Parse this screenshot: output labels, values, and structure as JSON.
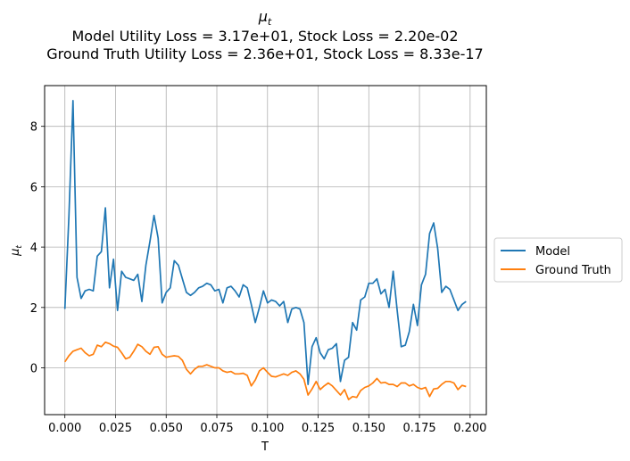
{
  "chart_data": {
    "type": "line",
    "title": "μt",
    "subtitle_lines": [
      "Model Utility Loss = 3.17e+01, Stock Loss = 2.20e-02",
      "Ground Truth Utility Loss = 2.36e+01, Stock Loss = 8.33e-17"
    ],
    "xlabel": "T",
    "ylabel": "μt",
    "xlim": [
      -0.01,
      0.208
    ],
    "ylim": [
      -1.55,
      9.35
    ],
    "xticks": [
      "0.000",
      "0.025",
      "0.050",
      "0.075",
      "0.100",
      "0.125",
      "0.150",
      "0.175",
      "0.200"
    ],
    "yticks": [
      "0",
      "2",
      "4",
      "6",
      "8"
    ],
    "grid": true,
    "legend_position": "outside-right",
    "x": [
      0.0,
      0.002,
      0.004,
      0.006,
      0.008,
      0.01,
      0.012,
      0.014,
      0.016,
      0.018,
      0.02,
      0.022,
      0.024,
      0.026,
      0.028,
      0.03,
      0.032,
      0.034,
      0.036,
      0.038,
      0.04,
      0.042,
      0.044,
      0.046,
      0.048,
      0.05,
      0.052,
      0.054,
      0.056,
      0.058,
      0.06,
      0.062,
      0.064,
      0.066,
      0.068,
      0.07,
      0.072,
      0.074,
      0.076,
      0.078,
      0.08,
      0.082,
      0.084,
      0.086,
      0.088,
      0.09,
      0.092,
      0.094,
      0.096,
      0.098,
      0.1,
      0.102,
      0.104,
      0.106,
      0.108,
      0.11,
      0.112,
      0.114,
      0.116,
      0.118,
      0.12,
      0.122,
      0.124,
      0.126,
      0.128,
      0.13,
      0.132,
      0.134,
      0.136,
      0.138,
      0.14,
      0.142,
      0.144,
      0.146,
      0.148,
      0.15,
      0.152,
      0.154,
      0.156,
      0.158,
      0.16,
      0.162,
      0.164,
      0.166,
      0.168,
      0.17,
      0.172,
      0.174,
      0.176,
      0.178,
      0.18,
      0.182,
      0.184,
      0.186,
      0.188,
      0.19,
      0.192,
      0.194,
      0.196,
      0.198
    ],
    "series": [
      {
        "name": "Model",
        "color": "#1f77b4",
        "values": [
          1.95,
          5.0,
          8.85,
          3.0,
          2.3,
          2.55,
          2.6,
          2.55,
          3.7,
          3.85,
          5.3,
          2.65,
          3.6,
          1.9,
          3.2,
          3.0,
          2.95,
          2.9,
          3.1,
          2.2,
          3.4,
          4.2,
          5.05,
          4.3,
          2.15,
          2.5,
          2.65,
          3.55,
          3.4,
          2.95,
          2.5,
          2.4,
          2.5,
          2.65,
          2.7,
          2.8,
          2.75,
          2.55,
          2.6,
          2.15,
          2.65,
          2.7,
          2.55,
          2.35,
          2.75,
          2.65,
          2.1,
          1.5,
          2.0,
          2.55,
          2.15,
          2.25,
          2.2,
          2.05,
          2.2,
          1.5,
          1.95,
          2.0,
          1.95,
          1.5,
          -0.55,
          0.7,
          1.0,
          0.5,
          0.3,
          0.6,
          0.65,
          0.8,
          -0.45,
          0.25,
          0.35,
          1.5,
          1.25,
          2.25,
          2.35,
          2.8,
          2.8,
          2.95,
          2.45,
          2.6,
          2.0,
          3.2,
          1.9,
          0.7,
          0.75,
          1.2,
          2.1,
          1.4,
          2.75,
          3.1,
          4.45,
          4.8,
          3.95,
          2.5,
          2.7,
          2.6,
          2.25,
          1.9,
          2.1,
          2.2
        ]
      },
      {
        "name": "Ground Truth",
        "color": "#ff7f0e",
        "values": [
          0.2,
          0.4,
          0.55,
          0.6,
          0.65,
          0.5,
          0.4,
          0.45,
          0.75,
          0.7,
          0.85,
          0.8,
          0.72,
          0.68,
          0.5,
          0.3,
          0.35,
          0.55,
          0.78,
          0.7,
          0.55,
          0.45,
          0.68,
          0.7,
          0.45,
          0.35,
          0.38,
          0.4,
          0.38,
          0.25,
          -0.05,
          -0.2,
          -0.05,
          0.05,
          0.05,
          0.1,
          0.05,
          0.0,
          0.0,
          -0.1,
          -0.15,
          -0.12,
          -0.2,
          -0.2,
          -0.18,
          -0.25,
          -0.6,
          -0.4,
          -0.1,
          0.0,
          -0.15,
          -0.28,
          -0.3,
          -0.25,
          -0.2,
          -0.25,
          -0.15,
          -0.1,
          -0.2,
          -0.38,
          -0.9,
          -0.7,
          -0.45,
          -0.72,
          -0.6,
          -0.5,
          -0.6,
          -0.75,
          -0.9,
          -0.72,
          -1.05,
          -0.95,
          -0.98,
          -0.75,
          -0.65,
          -0.6,
          -0.5,
          -0.35,
          -0.5,
          -0.48,
          -0.55,
          -0.55,
          -0.62,
          -0.5,
          -0.5,
          -0.6,
          -0.55,
          -0.65,
          -0.7,
          -0.65,
          -0.95,
          -0.7,
          -0.68,
          -0.55,
          -0.45,
          -0.45,
          -0.5,
          -0.72,
          -0.58,
          -0.62
        ]
      }
    ]
  }
}
